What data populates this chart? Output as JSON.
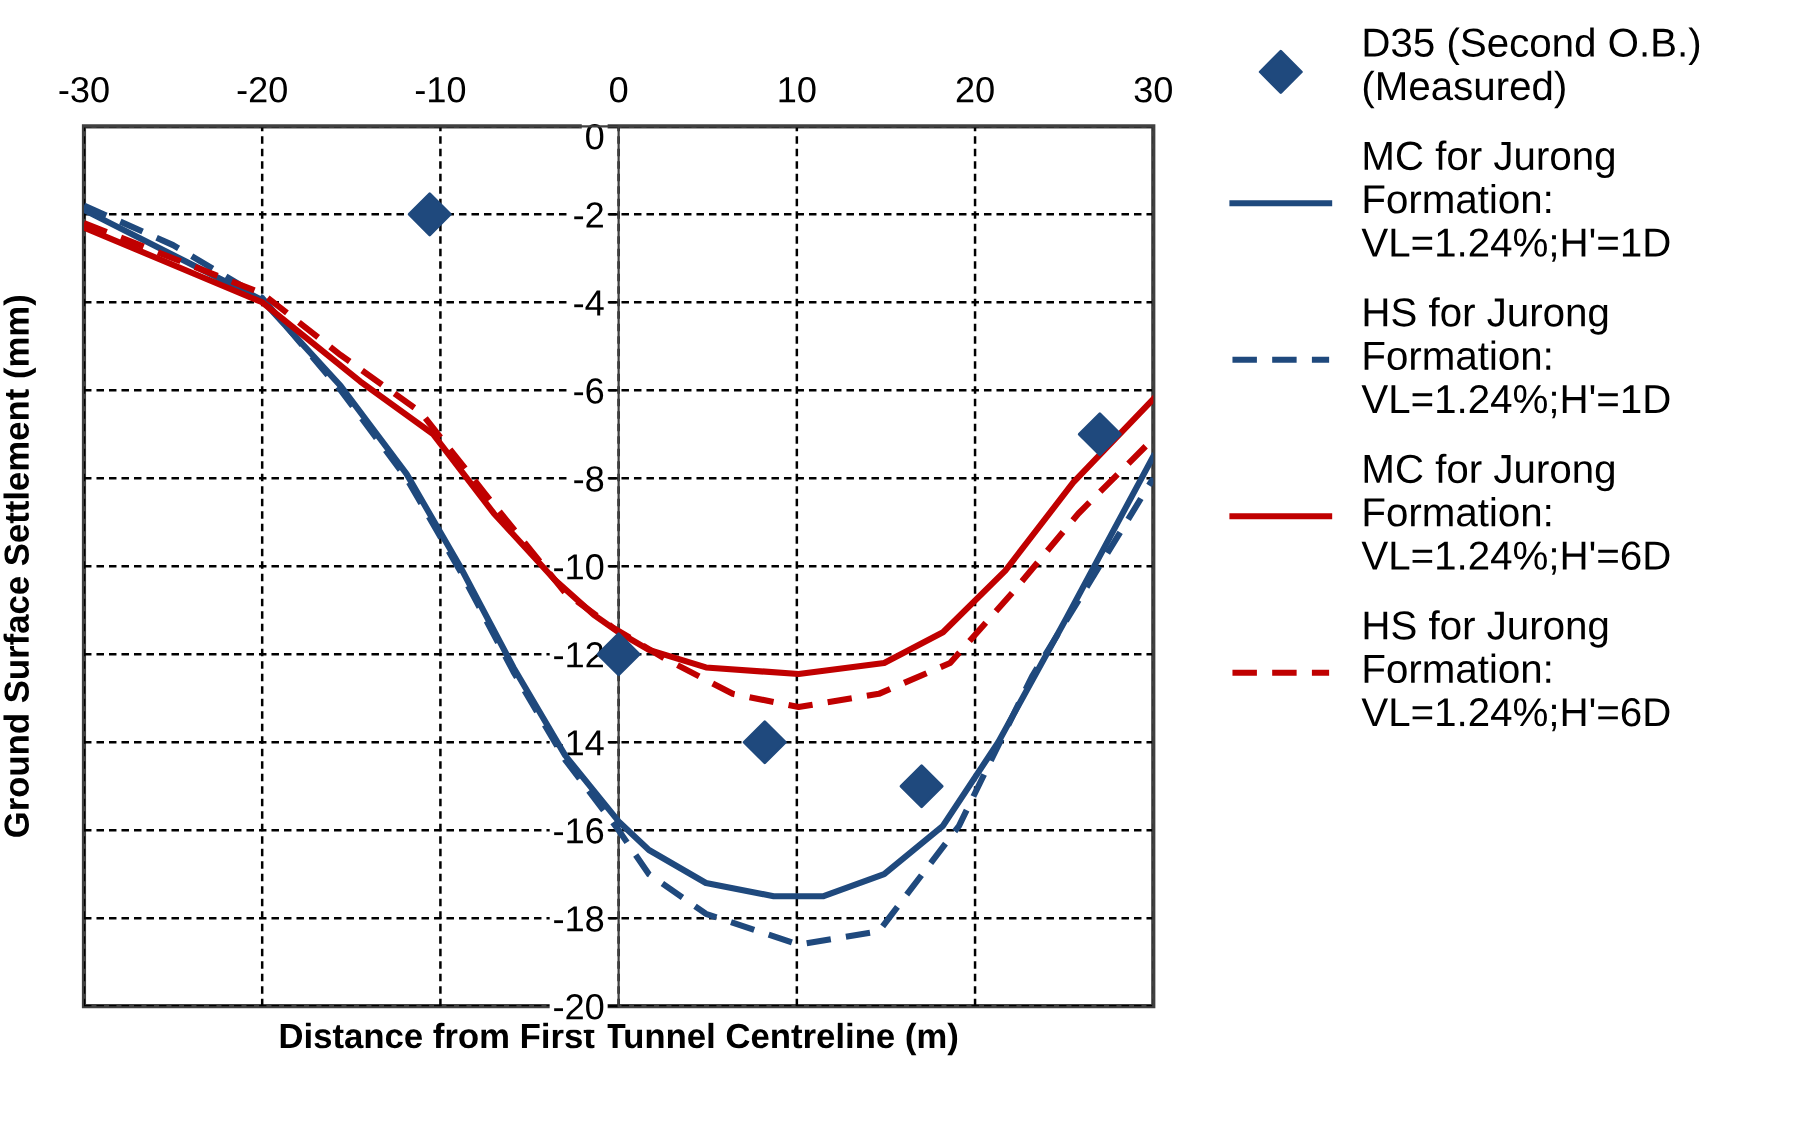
{
  "chart_data": {
    "type": "line",
    "xlabel": "Distance from First Tunnel Centreline (m)",
    "ylabel": "Ground Surface Settlement (mm)",
    "xlim": [
      -30,
      30
    ],
    "xticks": [
      -30,
      -20,
      -10,
      0,
      10,
      20,
      30
    ],
    "ylim": [
      -20,
      0
    ],
    "yticks": [
      -20,
      -18,
      -16,
      -14,
      -12,
      -10,
      -8,
      -6,
      -4,
      -2,
      0
    ],
    "grid": true,
    "legend": "right",
    "series": [
      {
        "name": "D35 (Second O.B.)\n(Measured)",
        "type": "scatter",
        "marker": "diamond",
        "color": "#1f497d",
        "x": [
          -10.6,
          0,
          8.2,
          17,
          27
        ],
        "values": [
          -2,
          -12,
          -14,
          -15,
          -7
        ]
      },
      {
        "name": "MC for Jurong\nFormation:\nVL=1.24%;H'=1D",
        "line_style": "solid",
        "color": "#1f497d",
        "x": [
          -30,
          -20,
          -15.6,
          -11.9,
          -8.9,
          -5.9,
          -3,
          0,
          1.7,
          4.9,
          8.7,
          11.5,
          14.9,
          18.2,
          21.3,
          25.1,
          30
        ],
        "values": [
          -1.9,
          -3.95,
          -5.9,
          -7.9,
          -10,
          -12.3,
          -14.3,
          -15.8,
          -16.45,
          -17.2,
          -17.5,
          -17.5,
          -17,
          -15.9,
          -14,
          -11.2,
          -7.5
        ]
      },
      {
        "name": "HS for Jurong\nFormation:\nVL=1.24%;H'=1D",
        "line_style": "dashed",
        "color": "#1f497d",
        "x": [
          -30,
          -25,
          -20,
          -15.6,
          -11.9,
          -8.9,
          -5.9,
          -3,
          0,
          1.7,
          4.9,
          10.1,
          14.6,
          19.1,
          23.2,
          30
        ],
        "values": [
          -1.8,
          -2.7,
          -3.9,
          -6,
          -8,
          -10.1,
          -12.4,
          -14.4,
          -16,
          -17,
          -17.9,
          -18.6,
          -18.3,
          -15.9,
          -12.5,
          -8
        ]
      },
      {
        "name": "MC for Jurong\nFormation:\nVL=1.24%;H'=6D",
        "line_style": "solid",
        "color": "#c00000",
        "x": [
          -30,
          -20,
          -14.5,
          -10.4,
          -7,
          -3.6,
          -1.4,
          0,
          1.7,
          4.9,
          10.1,
          14.9,
          18.2,
          21.7,
          25.5,
          30
        ],
        "values": [
          -2.3,
          -4,
          -5.8,
          -7,
          -8.8,
          -10.3,
          -11.1,
          -11.5,
          -11.9,
          -12.3,
          -12.45,
          -12.2,
          -11.5,
          -10.1,
          -8.1,
          -6.2
        ]
      },
      {
        "name": "HS for Jurong\nFormation:\nVL=1.24%;H'=6D",
        "line_style": "dashed",
        "color": "#c00000",
        "x": [
          -30,
          -20,
          -15.6,
          -11.1,
          -7.4,
          -3,
          -0.3,
          2.6,
          6.4,
          10.1,
          14.6,
          18.6,
          22.1,
          25.8,
          30
        ],
        "values": [
          -2.2,
          -3.8,
          -5.2,
          -6.5,
          -8.4,
          -10.6,
          -11.4,
          -12.1,
          -12.9,
          -13.2,
          -12.9,
          -12.2,
          -10.6,
          -8.8,
          -7.1
        ]
      }
    ]
  }
}
